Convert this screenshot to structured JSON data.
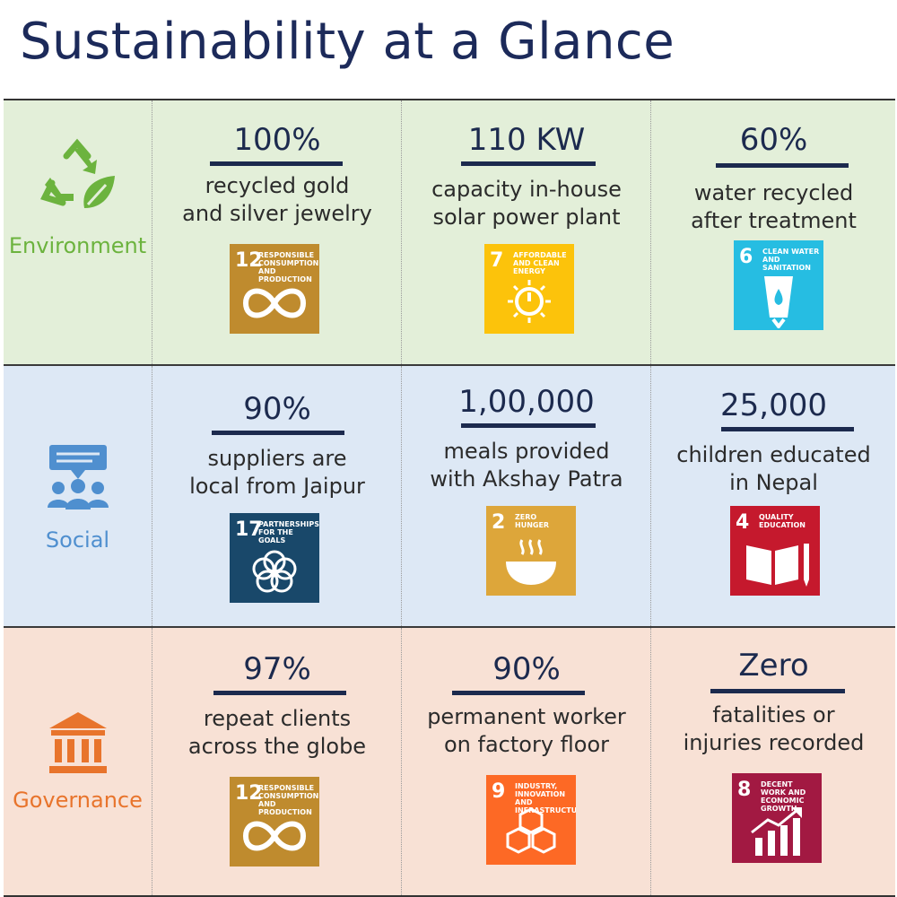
{
  "title": "Sustainability at a Glance",
  "colors": {
    "title": "#1c2a5a",
    "environment_bg": "#e3efd9",
    "social_bg": "#dde8f5",
    "governance_bg": "#f8e1d5",
    "environment_label": "#6cb33e",
    "social_label": "#4f8fcf",
    "governance_label": "#e8742c"
  },
  "rows": [
    {
      "category": "Environment",
      "icon": "recycle-leaf-icon",
      "items": [
        {
          "stat": "100%",
          "desc_line1": "recycled gold",
          "desc_line2": "and silver jewelry",
          "sdg": {
            "number": "12",
            "name": "Responsible consumption and production",
            "color": "#bf8b2e",
            "icon": "infinity-icon"
          }
        },
        {
          "stat": "110 KW",
          "desc_line1": "capacity in-house",
          "desc_line2": "solar power plant",
          "sdg": {
            "number": "7",
            "name": "Affordable and clean energy",
            "color": "#fcc30b",
            "icon": "sun-power-icon"
          }
        },
        {
          "stat": "60%",
          "desc_line1": "water recycled",
          "desc_line2": "after treatment",
          "sdg": {
            "number": "6",
            "name": "Clean water and sanitation",
            "color": "#26bde2",
            "icon": "water-glass-icon"
          }
        }
      ]
    },
    {
      "category": "Social",
      "icon": "people-chat-icon",
      "items": [
        {
          "stat": "90%",
          "desc_line1": "suppliers are",
          "desc_line2": "local from Jaipur",
          "sdg": {
            "number": "17",
            "name": "Partnerships for the goals",
            "color": "#19486a",
            "icon": "flower-rings-icon"
          }
        },
        {
          "stat": "1,00,000",
          "desc_line1": "meals provided",
          "desc_line2": "with Akshay Patra",
          "sdg": {
            "number": "2",
            "name": "Zero hunger",
            "color": "#dda63a",
            "icon": "bowl-icon"
          }
        },
        {
          "stat": "25,000",
          "desc_line1": "children educated",
          "desc_line2": "in Nepal",
          "sdg": {
            "number": "4",
            "name": "Quality education",
            "color": "#c5192d",
            "icon": "book-pencil-icon"
          }
        }
      ]
    },
    {
      "category": "Governance",
      "icon": "institution-icon",
      "items": [
        {
          "stat": "97%",
          "desc_line1": "repeat clients",
          "desc_line2": "across the globe",
          "sdg": {
            "number": "12",
            "name": "Responsible consumption and production",
            "color": "#bf8b2e",
            "icon": "infinity-icon"
          }
        },
        {
          "stat": "90%",
          "desc_line1": "permanent worker",
          "desc_line2": "on factory floor",
          "sdg": {
            "number": "9",
            "name": "Industry, innovation and infrastructure",
            "color": "#fd6925",
            "icon": "cubes-icon"
          }
        },
        {
          "stat": "Zero",
          "desc_line1": "fatalities or",
          "desc_line2": "injuries recorded",
          "sdg": {
            "number": "8",
            "name": "Decent work and economic growth",
            "color": "#a21942",
            "icon": "growth-chart-icon"
          }
        }
      ]
    }
  ]
}
